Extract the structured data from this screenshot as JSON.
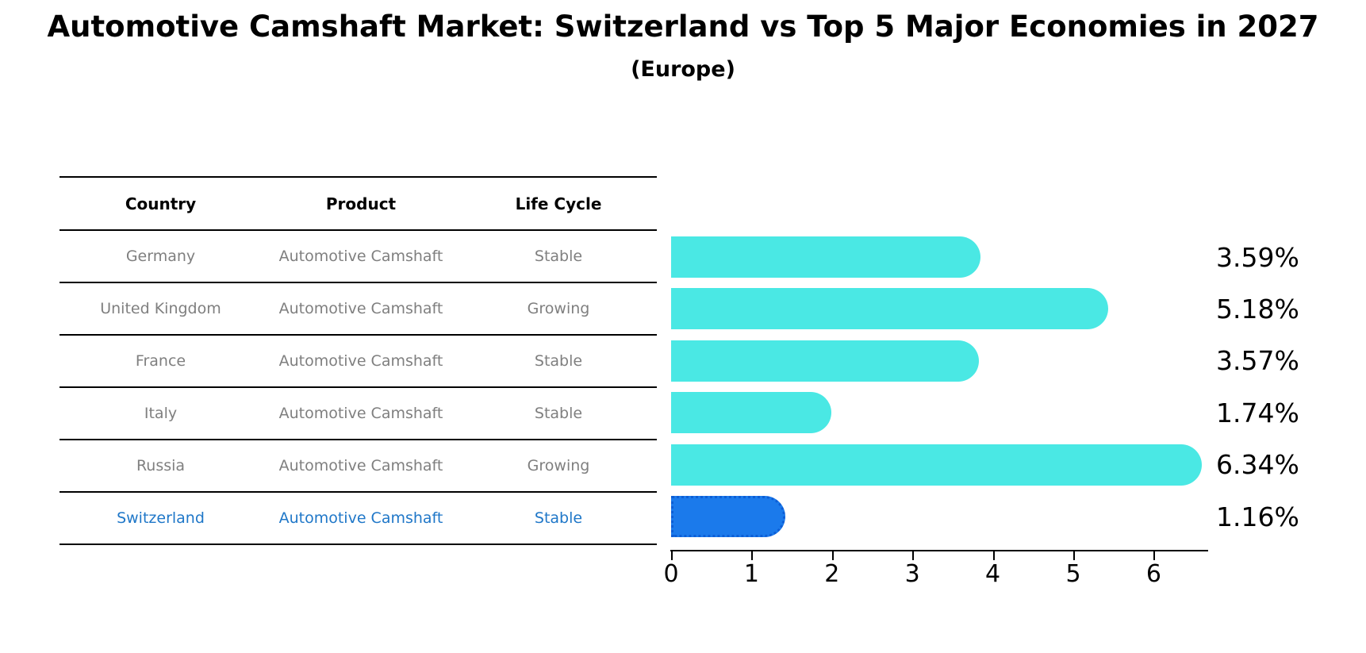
{
  "title": "Automotive Camshaft Market: Switzerland vs Top 5 Major Economies in 2027",
  "subtitle": "(Europe)",
  "table": {
    "headers": [
      "Country",
      "Product",
      "Life Cycle"
    ],
    "rows": [
      {
        "country": "Germany",
        "product": "Automotive Camshaft",
        "life_cycle": "Stable",
        "highlight": false
      },
      {
        "country": "United Kingdom",
        "product": "Automotive Camshaft",
        "life_cycle": "Growing",
        "highlight": false
      },
      {
        "country": "France",
        "product": "Automotive Camshaft",
        "life_cycle": "Stable",
        "highlight": false
      },
      {
        "country": "Italy",
        "product": "Automotive Camshaft",
        "life_cycle": "Stable",
        "highlight": false
      },
      {
        "country": "Russia",
        "product": "Automotive Camshaft",
        "life_cycle": "Growing",
        "highlight": false
      },
      {
        "country": "Switzerland",
        "product": "Automotive Camshaft",
        "life_cycle": "Stable",
        "highlight": true
      }
    ]
  },
  "chart_data": {
    "type": "bar",
    "orientation": "horizontal",
    "title": "Automotive Camshaft Market: Switzerland vs Top 5 Major Economies in 2027 (Europe)",
    "categories": [
      "Germany",
      "United Kingdom",
      "France",
      "Italy",
      "Russia",
      "Switzerland"
    ],
    "values": [
      3.59,
      5.18,
      3.57,
      1.74,
      6.34,
      1.16
    ],
    "value_labels": [
      "3.59%",
      "5.18%",
      "3.57%",
      "1.74%",
      "6.34%",
      "1.16%"
    ],
    "value_suffix": "%",
    "x_ticks": [
      0,
      1,
      2,
      3,
      4,
      5,
      6
    ],
    "xlim": [
      0,
      6.7
    ],
    "grid": false,
    "legend": "none",
    "highlight_index": 5,
    "bar_color": "#4AE8E4",
    "highlight_color": "#1B7AEB",
    "highlight_border_color": "#0D5ED6",
    "highlight_text_color": "#1F77C8",
    "row_text_color": "#7f7f7f"
  }
}
